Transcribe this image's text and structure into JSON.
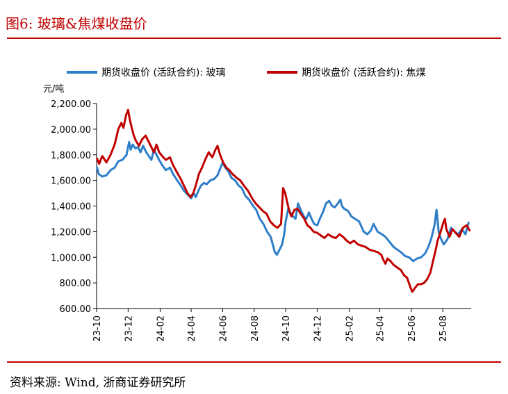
{
  "figure": {
    "title": "图6:   玻璃&焦煤收盘价",
    "source": "资料来源:  Wind,  浙商证券研究所"
  },
  "chart_data": {
    "type": "line",
    "ylabel": "元/吨",
    "ylim": [
      600,
      2200
    ],
    "yticks": [
      600,
      800,
      1000,
      1200,
      1400,
      1600,
      1800,
      2000,
      2200
    ],
    "ytick_labels": [
      "600.00",
      "800.00",
      "1,000.00",
      "1,200.00",
      "1,400.00",
      "1,600.00",
      "1,800.00",
      "2,000.00",
      "2,200.00"
    ],
    "xlim": [
      "2023-10-01",
      "2025-09-25"
    ],
    "xticks": [
      "2023-10-01",
      "2023-12-01",
      "2024-02-01",
      "2024-04-01",
      "2024-06-01",
      "2024-08-01",
      "2024-10-01",
      "2024-12-01",
      "2025-02-01",
      "2025-04-01",
      "2025-06-01",
      "2025-08-01"
    ],
    "xtick_labels": [
      "23-10",
      "23-12",
      "24-02",
      "24-04",
      "24-06",
      "24-08",
      "24-10",
      "24-12",
      "25-02",
      "25-04",
      "25-06",
      "25-08"
    ],
    "legend_position": "top",
    "grid": false,
    "series": [
      {
        "name": "期货收盘价 (活跃合约): 玻璃",
        "color": "#2E7EC9",
        "points": [
          [
            "2023-10-02",
            1700
          ],
          [
            "2023-10-05",
            1650
          ],
          [
            "2023-10-12",
            1630
          ],
          [
            "2023-10-20",
            1640
          ],
          [
            "2023-10-28",
            1680
          ],
          [
            "2023-11-05",
            1700
          ],
          [
            "2023-11-12",
            1750
          ],
          [
            "2023-11-20",
            1760
          ],
          [
            "2023-11-28",
            1800
          ],
          [
            "2023-12-03",
            1900
          ],
          [
            "2023-12-06",
            1840
          ],
          [
            "2023-12-10",
            1880
          ],
          [
            "2023-12-15",
            1850
          ],
          [
            "2023-12-20",
            1860
          ],
          [
            "2023-12-25",
            1820
          ],
          [
            "2023-12-30",
            1870
          ],
          [
            "2024-01-05",
            1820
          ],
          [
            "2024-01-10",
            1790
          ],
          [
            "2024-01-15",
            1760
          ],
          [
            "2024-01-20",
            1840
          ],
          [
            "2024-01-25",
            1800
          ],
          [
            "2024-01-30",
            1760
          ],
          [
            "2024-02-05",
            1720
          ],
          [
            "2024-02-12",
            1680
          ],
          [
            "2024-02-20",
            1700
          ],
          [
            "2024-02-26",
            1650
          ],
          [
            "2024-03-05",
            1600
          ],
          [
            "2024-03-12",
            1560
          ],
          [
            "2024-03-18",
            1520
          ],
          [
            "2024-03-25",
            1490
          ],
          [
            "2024-04-01",
            1460
          ],
          [
            "2024-04-06",
            1500
          ],
          [
            "2024-04-10",
            1470
          ],
          [
            "2024-04-15",
            1520
          ],
          [
            "2024-04-20",
            1560
          ],
          [
            "2024-04-26",
            1580
          ],
          [
            "2024-05-01",
            1570
          ],
          [
            "2024-05-08",
            1600
          ],
          [
            "2024-05-15",
            1610
          ],
          [
            "2024-05-22",
            1640
          ],
          [
            "2024-05-28",
            1700
          ],
          [
            "2024-06-01",
            1740
          ],
          [
            "2024-06-06",
            1700
          ],
          [
            "2024-06-12",
            1670
          ],
          [
            "2024-06-18",
            1620
          ],
          [
            "2024-06-25",
            1600
          ],
          [
            "2024-07-02",
            1560
          ],
          [
            "2024-07-08",
            1540
          ],
          [
            "2024-07-15",
            1480
          ],
          [
            "2024-07-22",
            1450
          ],
          [
            "2024-07-30",
            1400
          ],
          [
            "2024-08-05",
            1370
          ],
          [
            "2024-08-12",
            1300
          ],
          [
            "2024-08-19",
            1260
          ],
          [
            "2024-08-26",
            1200
          ],
          [
            "2024-09-02",
            1160
          ],
          [
            "2024-09-06",
            1100
          ],
          [
            "2024-09-10",
            1040
          ],
          [
            "2024-09-14",
            1020
          ],
          [
            "2024-09-18",
            1050
          ],
          [
            "2024-09-24",
            1100
          ],
          [
            "2024-09-28",
            1180
          ],
          [
            "2024-10-01",
            1280
          ],
          [
            "2024-10-06",
            1380
          ],
          [
            "2024-10-10",
            1350
          ],
          [
            "2024-10-15",
            1320
          ],
          [
            "2024-10-20",
            1300
          ],
          [
            "2024-10-25",
            1420
          ],
          [
            "2024-10-30",
            1370
          ],
          [
            "2024-11-05",
            1320
          ],
          [
            "2024-11-10",
            1300
          ],
          [
            "2024-11-15",
            1350
          ],
          [
            "2024-11-20",
            1300
          ],
          [
            "2024-11-25",
            1260
          ],
          [
            "2024-12-01",
            1250
          ],
          [
            "2024-12-06",
            1300
          ],
          [
            "2024-12-12",
            1350
          ],
          [
            "2024-12-18",
            1420
          ],
          [
            "2024-12-24",
            1440
          ],
          [
            "2024-12-30",
            1400
          ],
          [
            "2025-01-04",
            1390
          ],
          [
            "2025-01-10",
            1420
          ],
          [
            "2025-01-15",
            1450
          ],
          [
            "2025-01-18",
            1400
          ],
          [
            "2025-01-22",
            1380
          ],
          [
            "2025-01-30",
            1360
          ],
          [
            "2025-02-05",
            1320
          ],
          [
            "2025-02-12",
            1300
          ],
          [
            "2025-02-20",
            1280
          ],
          [
            "2025-03-01",
            1200
          ],
          [
            "2025-03-08",
            1180
          ],
          [
            "2025-03-15",
            1210
          ],
          [
            "2025-03-20",
            1260
          ],
          [
            "2025-03-28",
            1200
          ],
          [
            "2025-04-05",
            1180
          ],
          [
            "2025-04-12",
            1160
          ],
          [
            "2025-04-20",
            1120
          ],
          [
            "2025-04-28",
            1080
          ],
          [
            "2025-05-05",
            1060
          ],
          [
            "2025-05-12",
            1040
          ],
          [
            "2025-05-20",
            1010
          ],
          [
            "2025-05-28",
            1000
          ],
          [
            "2025-06-05",
            970
          ],
          [
            "2025-06-12",
            990
          ],
          [
            "2025-06-20",
            1000
          ],
          [
            "2025-06-28",
            1030
          ],
          [
            "2025-07-04",
            1080
          ],
          [
            "2025-07-10",
            1150
          ],
          [
            "2025-07-16",
            1250
          ],
          [
            "2025-07-20",
            1370
          ],
          [
            "2025-07-24",
            1200
          ],
          [
            "2025-07-28",
            1150
          ],
          [
            "2025-08-03",
            1100
          ],
          [
            "2025-08-10",
            1140
          ],
          [
            "2025-08-17",
            1230
          ],
          [
            "2025-08-24",
            1200
          ],
          [
            "2025-08-31",
            1180
          ],
          [
            "2025-09-07",
            1220
          ],
          [
            "2025-09-14",
            1180
          ],
          [
            "2025-09-20",
            1270
          ]
        ]
      },
      {
        "name": "期货收盘价 (活跃合约): 焦煤",
        "color": "#C00000",
        "points": [
          [
            "2023-10-02",
            1770
          ],
          [
            "2023-10-06",
            1730
          ],
          [
            "2023-10-12",
            1790
          ],
          [
            "2023-10-20",
            1740
          ],
          [
            "2023-10-28",
            1800
          ],
          [
            "2023-11-05",
            1880
          ],
          [
            "2023-11-12",
            2000
          ],
          [
            "2023-11-18",
            2050
          ],
          [
            "2023-11-22",
            2010
          ],
          [
            "2023-11-27",
            2110
          ],
          [
            "2023-12-01",
            2150
          ],
          [
            "2023-12-04",
            2080
          ],
          [
            "2023-12-08",
            2010
          ],
          [
            "2023-12-12",
            1950
          ],
          [
            "2023-12-16",
            1910
          ],
          [
            "2023-12-22",
            1870
          ],
          [
            "2023-12-28",
            1920
          ],
          [
            "2024-01-04",
            1950
          ],
          [
            "2024-01-10",
            1900
          ],
          [
            "2024-01-15",
            1860
          ],
          [
            "2024-01-20",
            1820
          ],
          [
            "2024-01-25",
            1880
          ],
          [
            "2024-01-30",
            1820
          ],
          [
            "2024-02-05",
            1790
          ],
          [
            "2024-02-12",
            1760
          ],
          [
            "2024-02-20",
            1780
          ],
          [
            "2024-02-26",
            1720
          ],
          [
            "2024-03-05",
            1660
          ],
          [
            "2024-03-12",
            1610
          ],
          [
            "2024-03-18",
            1560
          ],
          [
            "2024-03-25",
            1500
          ],
          [
            "2024-03-31",
            1470
          ],
          [
            "2024-04-05",
            1500
          ],
          [
            "2024-04-10",
            1560
          ],
          [
            "2024-04-16",
            1650
          ],
          [
            "2024-04-22",
            1700
          ],
          [
            "2024-04-28",
            1760
          ],
          [
            "2024-05-05",
            1820
          ],
          [
            "2024-05-12",
            1780
          ],
          [
            "2024-05-18",
            1840
          ],
          [
            "2024-05-22",
            1870
          ],
          [
            "2024-05-27",
            1800
          ],
          [
            "2024-06-02",
            1740
          ],
          [
            "2024-06-08",
            1700
          ],
          [
            "2024-06-14",
            1680
          ],
          [
            "2024-06-20",
            1650
          ],
          [
            "2024-06-28",
            1620
          ],
          [
            "2024-07-05",
            1600
          ],
          [
            "2024-07-12",
            1560
          ],
          [
            "2024-07-20",
            1520
          ],
          [
            "2024-07-28",
            1460
          ],
          [
            "2024-08-04",
            1420
          ],
          [
            "2024-08-11",
            1390
          ],
          [
            "2024-08-18",
            1360
          ],
          [
            "2024-08-25",
            1340
          ],
          [
            "2024-09-01",
            1280
          ],
          [
            "2024-09-08",
            1250
          ],
          [
            "2024-09-15",
            1230
          ],
          [
            "2024-09-22",
            1260
          ],
          [
            "2024-09-26",
            1540
          ],
          [
            "2024-09-30",
            1500
          ],
          [
            "2024-10-04",
            1430
          ],
          [
            "2024-10-08",
            1360
          ],
          [
            "2024-10-12",
            1320
          ],
          [
            "2024-10-18",
            1370
          ],
          [
            "2024-10-24",
            1380
          ],
          [
            "2024-10-30",
            1340
          ],
          [
            "2024-11-06",
            1300
          ],
          [
            "2024-11-12",
            1250
          ],
          [
            "2024-11-18",
            1230
          ],
          [
            "2024-11-24",
            1200
          ],
          [
            "2024-12-01",
            1190
          ],
          [
            "2024-12-08",
            1170
          ],
          [
            "2024-12-15",
            1150
          ],
          [
            "2024-12-22",
            1180
          ],
          [
            "2024-12-30",
            1160
          ],
          [
            "2025-01-06",
            1150
          ],
          [
            "2025-01-13",
            1180
          ],
          [
            "2025-01-20",
            1160
          ],
          [
            "2025-01-27",
            1130
          ],
          [
            "2025-02-03",
            1110
          ],
          [
            "2025-02-10",
            1130
          ],
          [
            "2025-02-18",
            1100
          ],
          [
            "2025-02-26",
            1090
          ],
          [
            "2025-03-05",
            1080
          ],
          [
            "2025-03-12",
            1060
          ],
          [
            "2025-03-20",
            1050
          ],
          [
            "2025-03-28",
            1040
          ],
          [
            "2025-04-04",
            1020
          ],
          [
            "2025-04-08",
            980
          ],
          [
            "2025-04-12",
            950
          ],
          [
            "2025-04-16",
            990
          ],
          [
            "2025-04-22",
            970
          ],
          [
            "2025-04-28",
            940
          ],
          [
            "2025-05-05",
            920
          ],
          [
            "2025-05-12",
            900
          ],
          [
            "2025-05-18",
            860
          ],
          [
            "2025-05-24",
            840
          ],
          [
            "2025-05-30",
            770
          ],
          [
            "2025-06-03",
            730
          ],
          [
            "2025-06-08",
            760
          ],
          [
            "2025-06-14",
            790
          ],
          [
            "2025-06-20",
            790
          ],
          [
            "2025-06-26",
            800
          ],
          [
            "2025-07-02",
            830
          ],
          [
            "2025-07-08",
            880
          ],
          [
            "2025-07-12",
            950
          ],
          [
            "2025-07-18",
            1050
          ],
          [
            "2025-07-22",
            1130
          ],
          [
            "2025-07-28",
            1200
          ],
          [
            "2025-08-02",
            1270
          ],
          [
            "2025-08-05",
            1300
          ],
          [
            "2025-08-08",
            1220
          ],
          [
            "2025-08-14",
            1160
          ],
          [
            "2025-08-20",
            1220
          ],
          [
            "2025-08-26",
            1190
          ],
          [
            "2025-09-02",
            1160
          ],
          [
            "2025-09-09",
            1230
          ],
          [
            "2025-09-16",
            1250
          ],
          [
            "2025-09-22",
            1210
          ]
        ]
      }
    ]
  }
}
